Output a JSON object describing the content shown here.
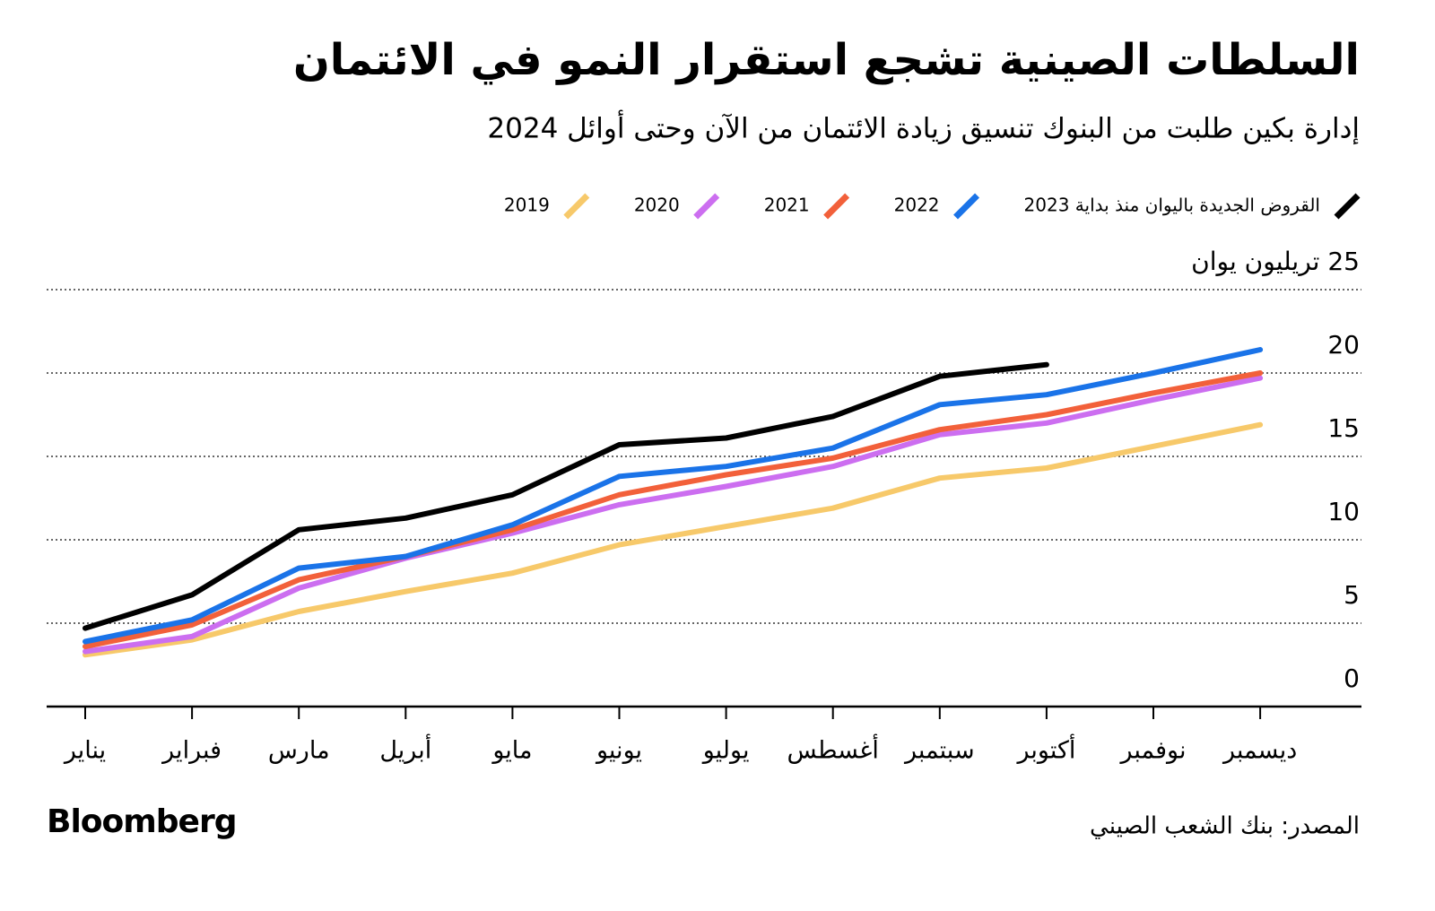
{
  "chart_data": {
    "type": "line",
    "title": "السلطات الصينية تشجع استقرار النمو في الائتمان",
    "subtitle": "إدارة بكين طلبت من البنوك تنسيق زيادة الائتمان من الآن وحتى أوائل 2024",
    "source": "المصدر: بنك الشعب الصيني",
    "brand": "Bloomberg",
    "categories": [
      "يناير",
      "فبراير",
      "مارس",
      "أبريل",
      "مايو",
      "يونيو",
      "يوليو",
      "أغسطس",
      "سبتمبر",
      "أكتوبر",
      "نوفمبر",
      "ديسمبر"
    ],
    "series": [
      {
        "name": "القروض الجديدة باليوان منذ بداية 2023",
        "color": "#000000",
        "values": [
          4.7,
          6.7,
          10.6,
          11.3,
          12.7,
          15.7,
          16.1,
          17.4,
          19.8,
          20.5,
          null,
          null
        ]
      },
      {
        "name": "2022",
        "color": "#1a73e8",
        "values": [
          3.9,
          5.2,
          8.3,
          9.0,
          10.9,
          13.8,
          14.4,
          15.5,
          18.1,
          18.7,
          20.0,
          21.4
        ]
      },
      {
        "name": "2021",
        "color": "#f2603a",
        "values": [
          3.6,
          4.9,
          7.6,
          9.0,
          10.6,
          12.7,
          13.9,
          14.9,
          16.6,
          17.5,
          18.8,
          20.0
        ]
      },
      {
        "name": "2020",
        "color": "#cc6ef0",
        "values": [
          3.3,
          4.2,
          7.1,
          8.9,
          10.4,
          12.1,
          13.2,
          14.4,
          16.3,
          17.0,
          18.4,
          19.7
        ]
      },
      {
        "name": "2019",
        "color": "#f7c96a",
        "values": [
          3.1,
          4.0,
          5.7,
          6.9,
          8.0,
          9.7,
          10.8,
          11.9,
          13.7,
          14.3,
          15.6,
          16.9
        ]
      }
    ],
    "ylim": [
      0,
      25
    ],
    "yticks": [
      0,
      5,
      10,
      15,
      20,
      {
        "value": 25,
        "label": "25 تريليون يوان"
      }
    ],
    "grid": true
  }
}
